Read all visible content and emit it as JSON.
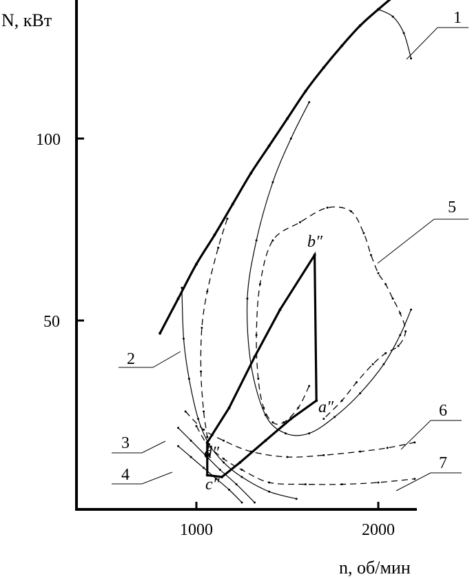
{
  "chart_data": {
    "type": "line",
    "xlabel": "n, об/мин",
    "ylabel": "N, кВт",
    "xlim": [
      650,
      2200
    ],
    "ylim": [
      0,
      140
    ],
    "xticks": [
      "1000",
      "2000"
    ],
    "yticks": [
      "50",
      "100"
    ],
    "xtick_values": [
      1000,
      2000
    ],
    "ytick_values": [
      50,
      100
    ],
    "grid": false,
    "callouts": [
      "1",
      "2",
      "3",
      "4",
      "5",
      "6",
      "7"
    ],
    "point_labels": [
      "b″",
      "a″",
      "d″",
      "c″"
    ],
    "series": [
      {
        "id": "1",
        "style": "thick",
        "points": [
          [
            800,
            46.5
          ],
          [
            900,
            56
          ],
          [
            1000,
            65.5
          ],
          [
            1100,
            73.5
          ],
          [
            1200,
            82
          ],
          [
            1300,
            90.5
          ],
          [
            1400,
            98
          ],
          [
            1500,
            105.5
          ],
          [
            1600,
            113
          ],
          [
            1700,
            119.5
          ],
          [
            1800,
            125.5
          ],
          [
            1900,
            131
          ],
          [
            2000,
            135.5
          ],
          [
            2100,
            139.5
          ],
          [
            2200,
            142
          ]
        ]
      },
      {
        "id": "1",
        "style": "thin",
        "points": [
          [
            1620,
            110
          ],
          [
            1520,
            100
          ],
          [
            1420,
            88
          ],
          [
            1330,
            72
          ],
          [
            1280,
            56
          ],
          [
            1300,
            38
          ],
          [
            1380,
            24
          ],
          [
            1490,
            19
          ],
          [
            1620,
            19
          ],
          [
            1760,
            23.5
          ],
          [
            1900,
            30
          ],
          [
            2030,
            38
          ],
          [
            2120,
            46
          ],
          [
            2180,
            53
          ]
        ]
      },
      {
        "id": "1",
        "style": "thin",
        "points": [
          [
            2000,
            135.5
          ],
          [
            2080,
            133.5
          ],
          [
            2140,
            129
          ],
          [
            2180,
            122
          ]
        ]
      },
      {
        "id": "5",
        "style": "dashed",
        "points": [
          [
            1170,
            78
          ],
          [
            1120,
            70
          ],
          [
            1060,
            58
          ],
          [
            1030,
            48
          ],
          [
            1025,
            36
          ],
          [
            1040,
            25
          ],
          [
            1060,
            18
          ],
          [
            1070,
            13
          ]
        ]
      },
      {
        "id": "5",
        "style": "dashed",
        "points": [
          [
            1620,
            32
          ],
          [
            1560,
            26
          ],
          [
            1480,
            22
          ],
          [
            1420,
            22
          ],
          [
            1370,
            26
          ],
          [
            1340,
            34
          ],
          [
            1330,
            46
          ],
          [
            1350,
            60
          ],
          [
            1420,
            72
          ],
          [
            1570,
            77
          ],
          [
            1720,
            81
          ],
          [
            1850,
            80
          ],
          [
            1920,
            74
          ],
          [
            1960,
            68
          ],
          [
            2000,
            63
          ],
          [
            2040,
            60
          ],
          [
            2080,
            56
          ],
          [
            2120,
            52
          ],
          [
            2150,
            47
          ],
          [
            2110,
            43
          ],
          [
            2040,
            41
          ],
          [
            1970,
            38
          ],
          [
            1880,
            33
          ],
          [
            1800,
            28
          ],
          [
            1700,
            23
          ]
        ]
      },
      {
        "id": "2",
        "style": "thin",
        "points": [
          [
            920,
            59
          ],
          [
            930,
            45
          ],
          [
            960,
            34
          ],
          [
            1010,
            23
          ],
          [
            1070,
            16
          ],
          [
            1150,
            11
          ],
          [
            1250,
            7
          ],
          [
            1400,
            3
          ],
          [
            1550,
            1
          ]
        ]
      },
      {
        "id": "3",
        "style": "thin",
        "points": [
          [
            900,
            20.5
          ],
          [
            970,
            17
          ],
          [
            1050,
            13
          ],
          [
            1130,
            9
          ],
          [
            1220,
            5
          ],
          [
            1320,
            0
          ]
        ]
      },
      {
        "id": "4",
        "style": "thin",
        "points": [
          [
            900,
            15.5
          ],
          [
            970,
            12.5
          ],
          [
            1040,
            9.5
          ],
          [
            1110,
            6.5
          ],
          [
            1180,
            3.5
          ],
          [
            1250,
            0
          ]
        ]
      },
      {
        "id": "6",
        "style": "dashed",
        "points": [
          [
            940,
            25
          ],
          [
            1040,
            20
          ],
          [
            1150,
            17
          ],
          [
            1300,
            14
          ],
          [
            1500,
            12.5
          ],
          [
            1700,
            13
          ],
          [
            1900,
            14
          ],
          [
            2050,
            15
          ],
          [
            2200,
            16.5
          ]
        ]
      },
      {
        "id": "7",
        "style": "dashed",
        "points": [
          [
            1000,
            21
          ],
          [
            1060,
            16
          ],
          [
            1150,
            12
          ],
          [
            1250,
            9
          ],
          [
            1400,
            5.5
          ],
          [
            1600,
            5
          ],
          [
            1800,
            5
          ],
          [
            2000,
            5.5
          ],
          [
            2200,
            6.5
          ]
        ]
      },
      {
        "id": "cycle",
        "style": "thick",
        "points": [
          [
            1060,
            16.5
          ],
          [
            1180,
            26
          ],
          [
            1320,
            40
          ],
          [
            1460,
            53
          ],
          [
            1650,
            68
          ],
          [
            1660,
            28
          ],
          [
            1520,
            23
          ],
          [
            1380,
            17
          ],
          [
            1240,
            11
          ],
          [
            1140,
            7
          ],
          [
            1060,
            7.5
          ],
          [
            1060,
            16.5
          ]
        ]
      }
    ]
  }
}
